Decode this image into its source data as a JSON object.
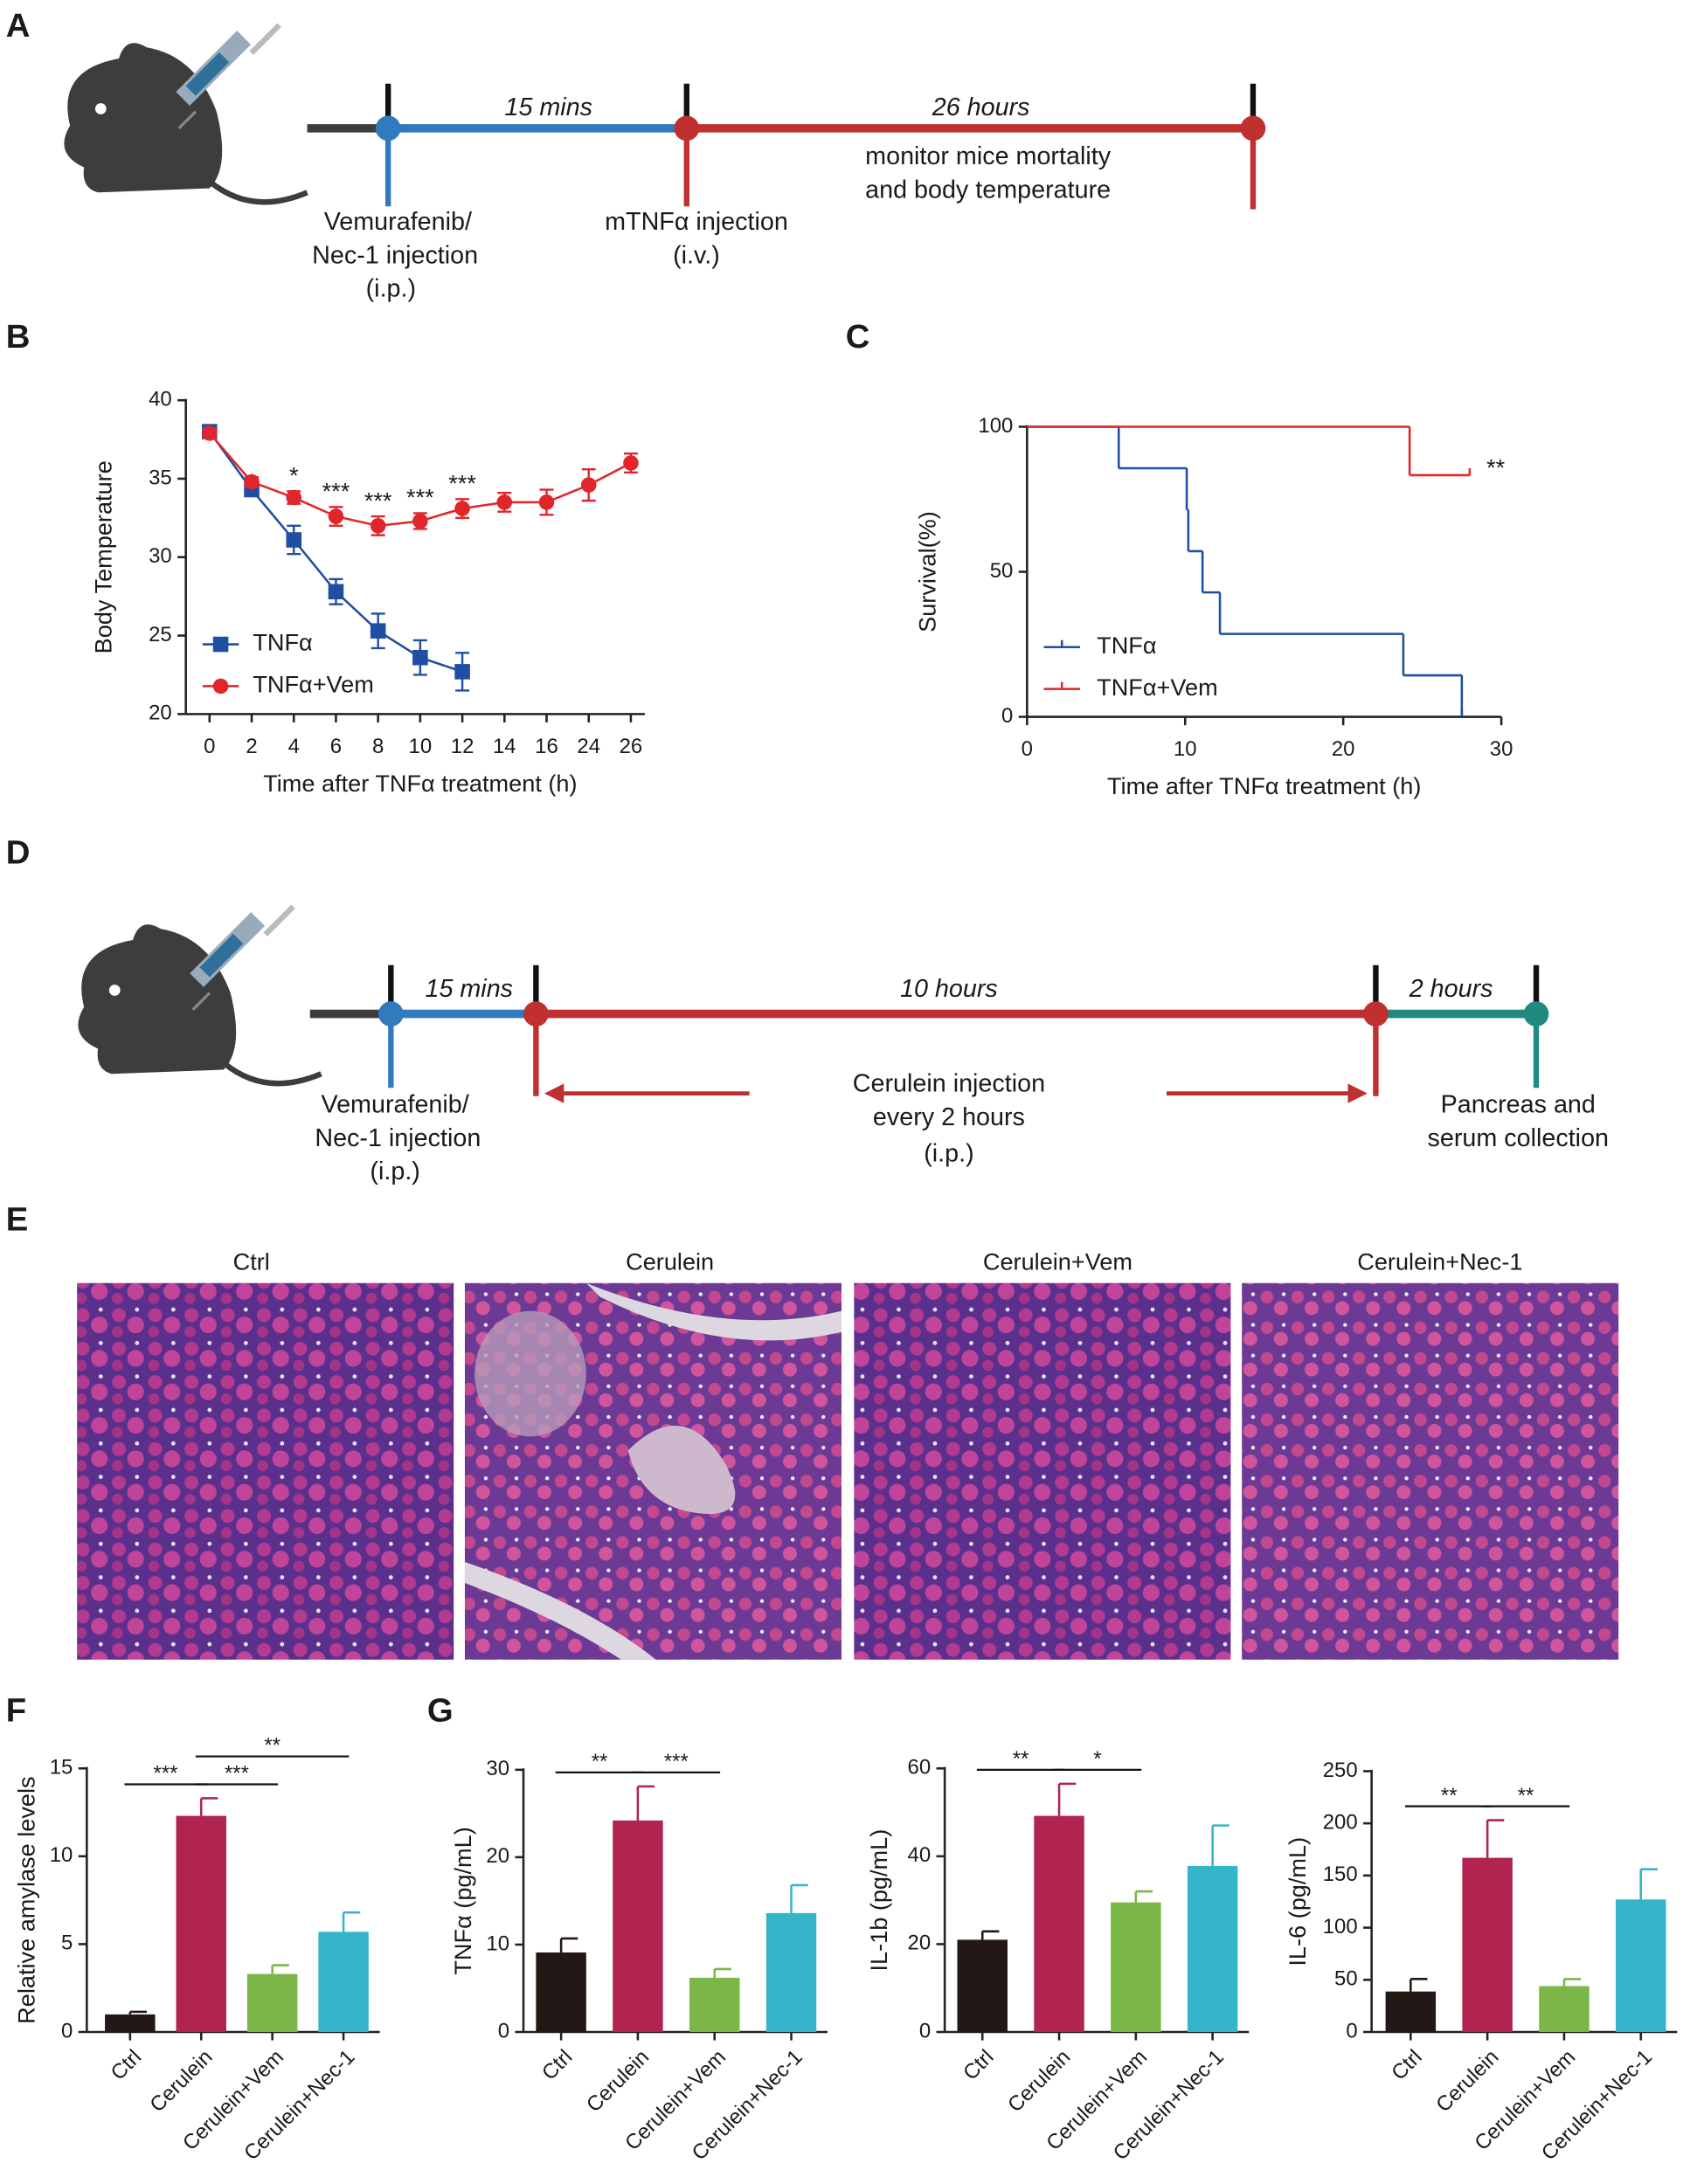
{
  "figure": {
    "panel_labels": [
      "A",
      "B",
      "C",
      "D",
      "E",
      "F",
      "G"
    ],
    "timeline_a": {
      "interval_1": "15 mins",
      "interval_2": "26 hours",
      "note": [
        "monitor mice mortality",
        "and body temperature"
      ],
      "step_1": [
        "Vemurafenib/",
        "Nec-1 injection",
        "(i.p.)"
      ],
      "step_2": [
        "mTNFα injection",
        "(i.v.)"
      ]
    },
    "timeline_d": {
      "interval_1": "15 mins",
      "interval_2": "10 hours",
      "interval_3": "2 hours",
      "note": [
        "Cerulein injection",
        "every 2 hours",
        "(i.p.)"
      ],
      "step_1": [
        "Vemurafenib/",
        "Nec-1 injection",
        "(i.p.)"
      ],
      "step_2": [
        "Pancreas and",
        "serum collection"
      ]
    },
    "histology": {
      "labels": [
        "Ctrl",
        "Cerulein",
        "Cerulein+Vem",
        "Cerulein+Nec-1"
      ]
    }
  },
  "chart_data": [
    {
      "type": "line",
      "categories": [
        "0",
        "2",
        "4",
        "6",
        "8",
        "10",
        "12",
        "14",
        "16",
        "24",
        "26"
      ],
      "ylim": [
        20,
        40
      ],
      "yticks": [
        20,
        25,
        30,
        35,
        40
      ],
      "xlabel": "Time after TNFα treatment (h)",
      "ylabel": "Body Temperature",
      "legend": "lower left",
      "series": [
        {
          "name": "TNFα",
          "color": "#1f4ea3",
          "marker": "square",
          "values": [
            38.0,
            34.3,
            31.1,
            27.8,
            25.3,
            23.6,
            22.7,
            null,
            null,
            null,
            null
          ],
          "errors": [
            0.3,
            0.3,
            0.9,
            0.8,
            1.1,
            1.1,
            1.2,
            null,
            null,
            null,
            null
          ]
        },
        {
          "name": "TNFα+Vem",
          "color": "#e0262b",
          "marker": "circle",
          "values": [
            37.9,
            34.8,
            33.8,
            32.6,
            32.0,
            32.3,
            33.1,
            33.5,
            33.5,
            34.6,
            36.0
          ],
          "errors": [
            0.3,
            0.3,
            0.4,
            0.6,
            0.6,
            0.5,
            0.6,
            0.6,
            0.8,
            1.0,
            0.6
          ]
        }
      ],
      "significance": [
        null,
        null,
        "*",
        "***",
        "***",
        "***",
        "***",
        null,
        null,
        null,
        null
      ]
    },
    {
      "type": "survival",
      "xlim": [
        0,
        30
      ],
      "xticks": [
        0,
        10,
        20,
        30
      ],
      "ylim": [
        0,
        100
      ],
      "yticks": [
        0,
        50,
        100
      ],
      "xlabel": "Time after TNFα treatment (h)",
      "ylabel": "Survival(%)",
      "legend": "lower left",
      "series": [
        {
          "name": "TNFα",
          "color": "#1f4ea3",
          "x": [
            0,
            5.8,
            10.1,
            10.2,
            11.1,
            12.2,
            23.8,
            27.5
          ],
          "values": [
            100,
            85.7,
            71.4,
            57.1,
            42.9,
            28.6,
            14.3,
            0
          ]
        },
        {
          "name": "TNFα+Vem",
          "color": "#e0262b",
          "x": [
            0,
            24.2,
            28.0
          ],
          "values": [
            100,
            83.3,
            83.3
          ]
        }
      ],
      "annotation": "**"
    },
    {
      "type": "bar",
      "categories": [
        "Ctrl",
        "Cerulein",
        "Cerulein+Vem",
        "Cerulein+Nec-1"
      ],
      "values": [
        1.0,
        12.3,
        3.3,
        5.7
      ],
      "errors": [
        0.15,
        1.0,
        0.5,
        1.1
      ],
      "colors": [
        "#231815",
        "#b0244f",
        "#7ab648",
        "#35b5c9"
      ],
      "ylim": [
        0,
        15
      ],
      "yticks": [
        0,
        5,
        10,
        15
      ],
      "ylabel": "Relative amylase levels",
      "comparisons": [
        {
          "pair": [
            "Ctrl",
            "Cerulein"
          ],
          "label": "***"
        },
        {
          "pair": [
            "Cerulein",
            "Cerulein+Vem"
          ],
          "label": "***"
        },
        {
          "pair": [
            "Cerulein",
            "Cerulein+Nec-1"
          ],
          "label": "**"
        }
      ]
    },
    {
      "type": "bar",
      "categories": [
        "Ctrl",
        "Cerulein",
        "Cerulein+Vem",
        "Cerulein+Nec-1"
      ],
      "values": [
        9.1,
        24.2,
        6.2,
        13.6
      ],
      "errors": [
        1.6,
        3.9,
        1.0,
        3.2
      ],
      "colors": [
        "#231815",
        "#b0244f",
        "#7ab648",
        "#35b5c9"
      ],
      "ylim": [
        0,
        30
      ],
      "yticks": [
        0,
        10,
        20,
        30
      ],
      "ylabel": "TNFα (pg/mL)",
      "comparisons": [
        {
          "pair": [
            "Ctrl",
            "Cerulein"
          ],
          "label": "**"
        },
        {
          "pair": [
            "Cerulein",
            "Cerulein+Vem"
          ],
          "label": "***"
        }
      ]
    },
    {
      "type": "bar",
      "categories": [
        "Ctrl",
        "Cerulein",
        "Cerulein+Vem",
        "Cerulein+Nec-1"
      ],
      "values": [
        21,
        49.2,
        29.5,
        37.8
      ],
      "errors": [
        1.9,
        7.3,
        2.5,
        9.2
      ],
      "colors": [
        "#231815",
        "#b0244f",
        "#7ab648",
        "#35b5c9"
      ],
      "ylim": [
        0,
        60
      ],
      "yticks": [
        0,
        20,
        40,
        60
      ],
      "ylabel": "IL-1b (pg/mL)",
      "comparisons": [
        {
          "pair": [
            "Ctrl",
            "Cerulein"
          ],
          "label": "**"
        },
        {
          "pair": [
            "Cerulein",
            "Cerulein+Vem"
          ],
          "label": "*"
        }
      ]
    },
    {
      "type": "bar",
      "categories": [
        "Ctrl",
        "Cerulein",
        "Cerulein+Vem",
        "Cerulein+Nec-1"
      ],
      "values": [
        38.8,
        167,
        44,
        127
      ],
      "errors": [
        12,
        36,
        6.7,
        29
      ],
      "colors": [
        "#231815",
        "#b0244f",
        "#7ab648",
        "#35b5c9"
      ],
      "ylim": [
        0,
        250
      ],
      "yticks": [
        0,
        50,
        100,
        150,
        200,
        250
      ],
      "ylabel": "IL-6 (pg/mL)",
      "comparisons": [
        {
          "pair": [
            "Ctrl",
            "Cerulein"
          ],
          "label": "**"
        },
        {
          "pair": [
            "Cerulein",
            "Cerulein+Vem"
          ],
          "label": "**"
        }
      ]
    }
  ]
}
